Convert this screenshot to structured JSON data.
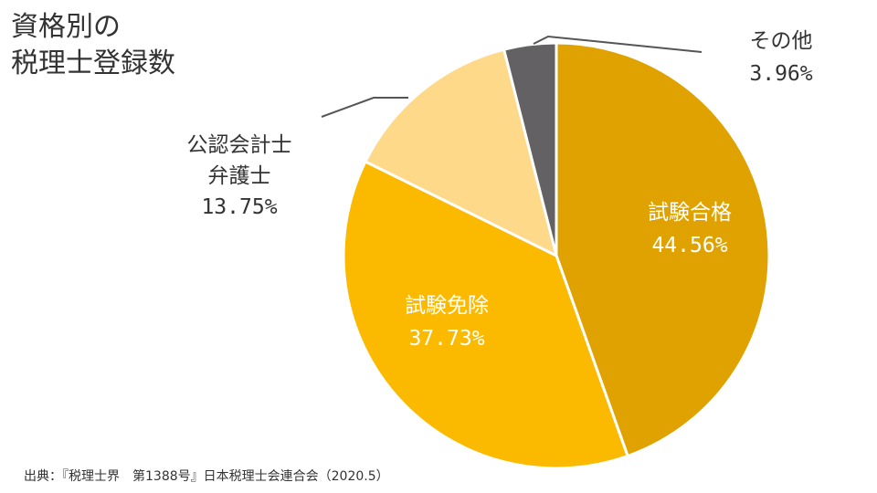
{
  "title": {
    "line1": "資格別の",
    "line2": "税理士登録数"
  },
  "chart_data": {
    "type": "pie",
    "title": "資格別の税理士登録数",
    "start_angle_deg": 0,
    "direction": "clockwise",
    "slices": [
      {
        "label": "試験合格",
        "value": 44.56,
        "value_label": "44.56%",
        "color": "#e0a200",
        "label_color": "#ffffff",
        "label_position": "inside"
      },
      {
        "label": "試験免除",
        "value": 37.73,
        "value_label": "37.73%",
        "color": "#fbb900",
        "label_color": "#ffffff",
        "label_position": "inside"
      },
      {
        "label": "公認会計士\n弁護士",
        "value": 13.75,
        "value_label": "13.75%",
        "color": "#ffd98a",
        "label_color": "#333333",
        "label_position": "outside"
      },
      {
        "label": "その他",
        "value": 3.96,
        "value_label": "3.96%",
        "color": "#636163",
        "label_color": "#333333",
        "label_position": "outside"
      }
    ],
    "outside_label_lines": {
      "s2": [
        "公認会計士",
        "弁護士",
        "13.75%"
      ],
      "s3": [
        "その他",
        "3.96%"
      ]
    },
    "legend": "none"
  },
  "source": "出典：『税理士界　第1388号』日本税理士会連合会（2020.5）"
}
